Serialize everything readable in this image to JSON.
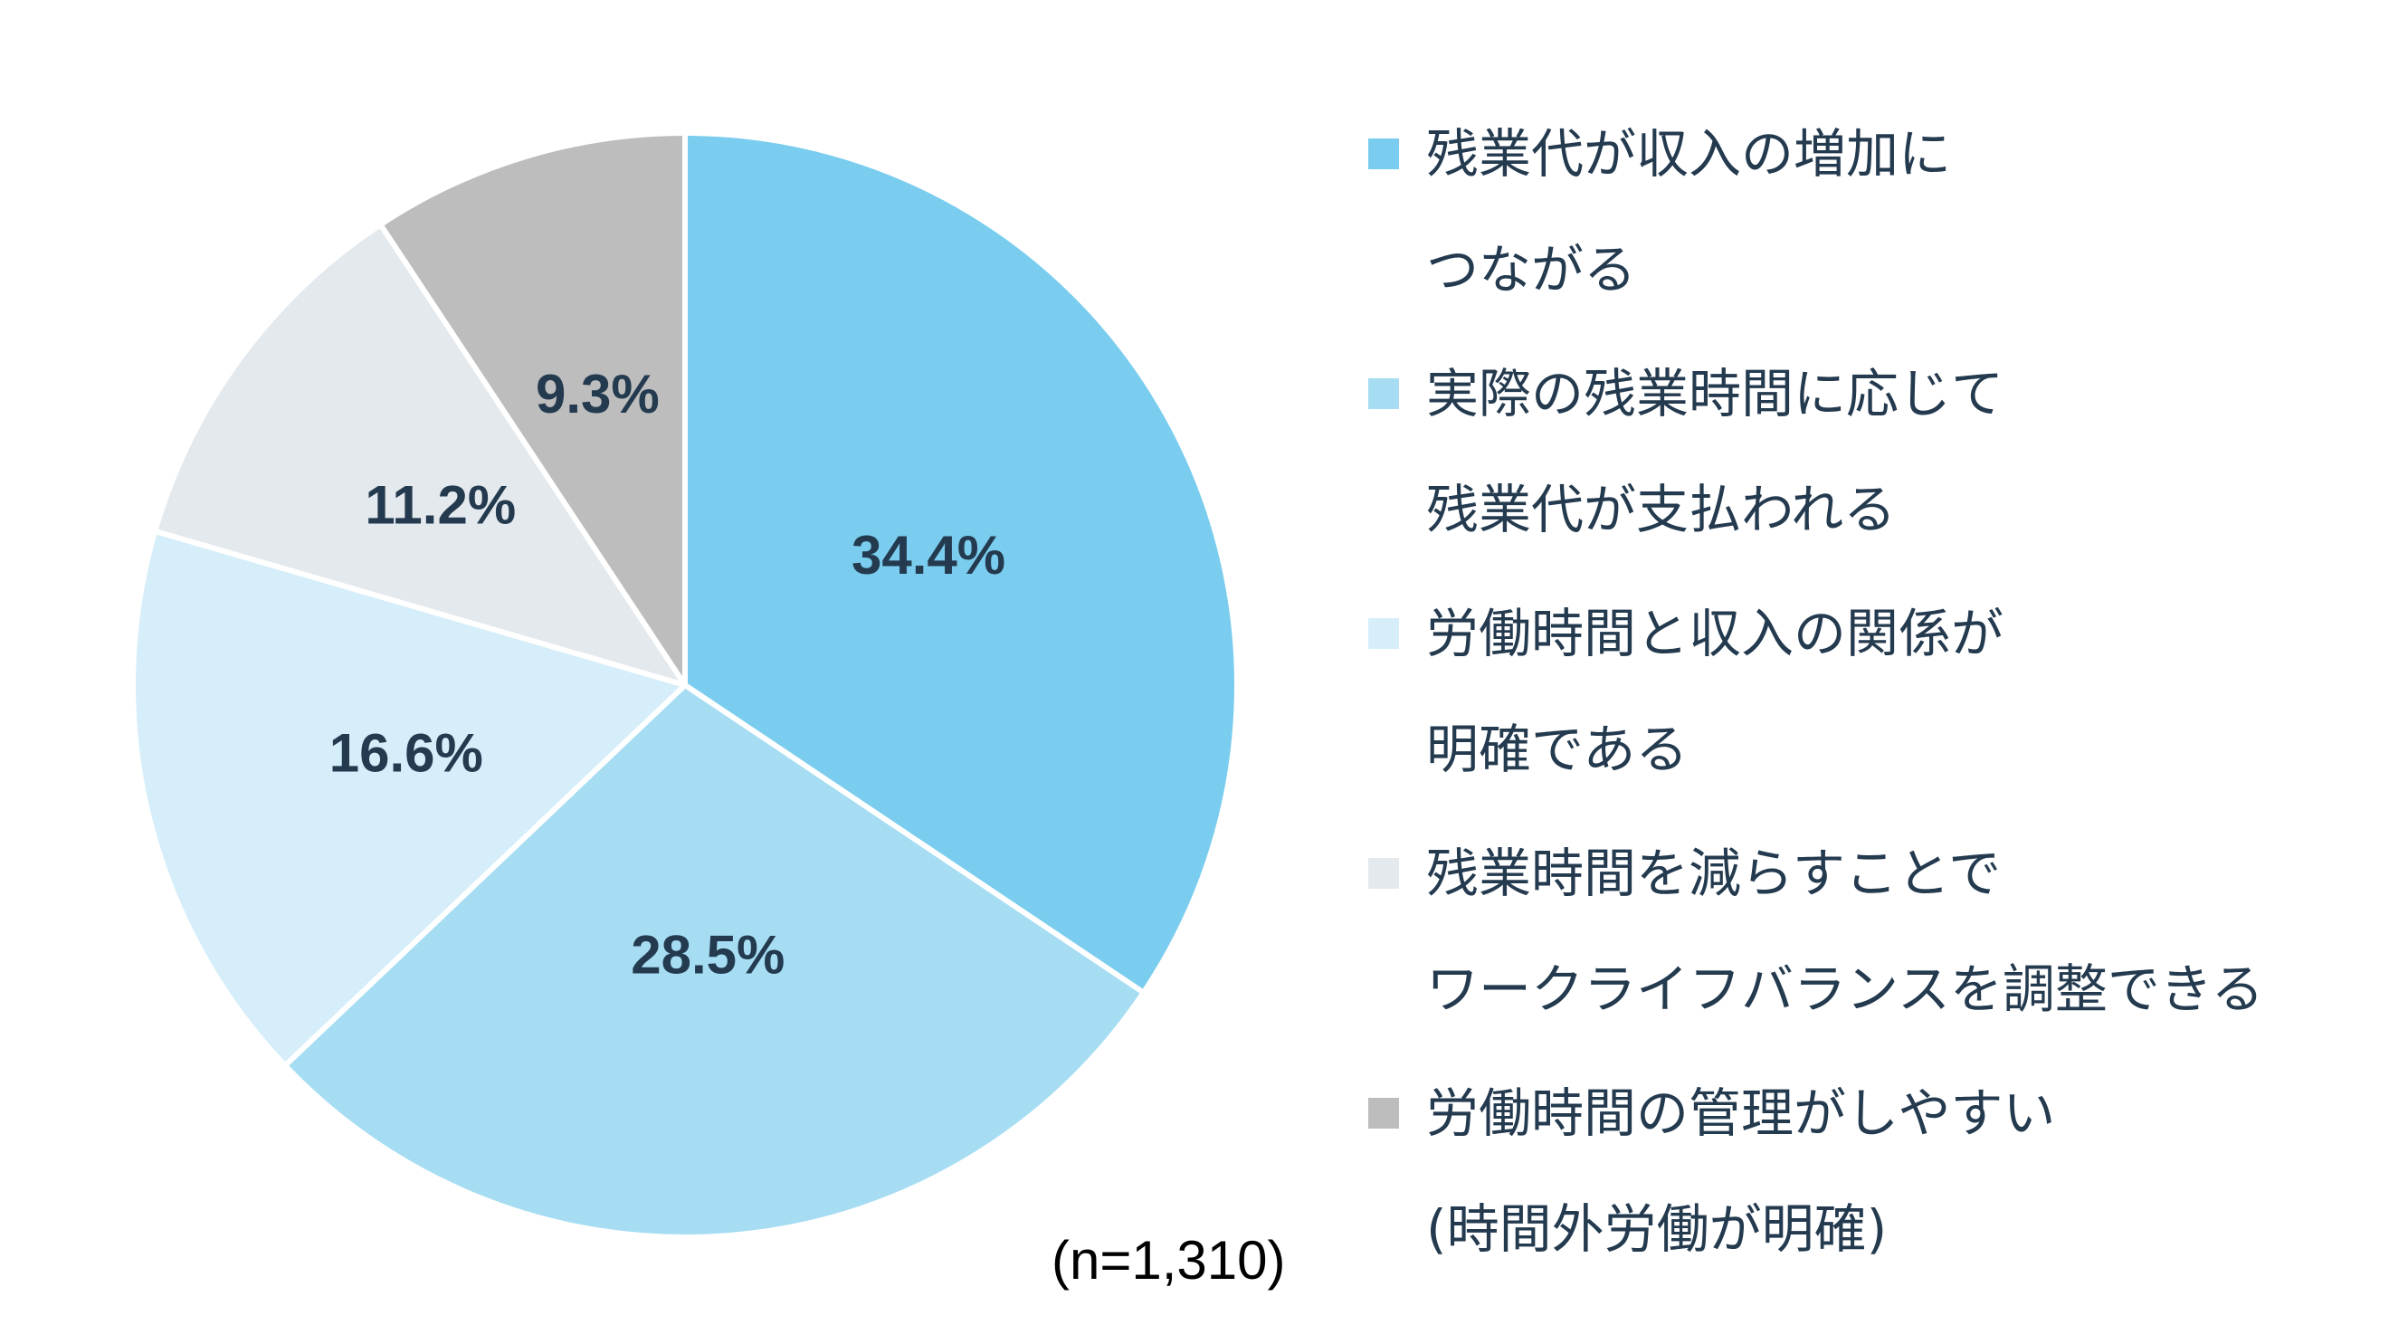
{
  "chart_data": {
    "type": "pie",
    "note": "(n=1,310)",
    "slices": [
      {
        "label_lines": [
          "残業代が収入の増加に",
          "つながる"
        ],
        "value": 34.4,
        "display": "34.4%",
        "color": "#7acdee"
      },
      {
        "label_lines": [
          "実際の残業時間に応じて",
          "残業代が支払われる"
        ],
        "value": 28.5,
        "display": "28.5%",
        "color": "#a6ddf3"
      },
      {
        "label_lines": [
          "労働時間と収入の関係が",
          "明確である"
        ],
        "value": 16.6,
        "display": "16.6%",
        "color": "#d5eef9"
      },
      {
        "label_lines": [
          "残業時間を減らすことで",
          "ワークライフバランスを調整できる"
        ],
        "value": 11.2,
        "display": "11.2%",
        "color": "#e4e9ed"
      },
      {
        "label_lines": [
          "労働時間の管理がしやすい",
          "(時間外労働が明確)"
        ],
        "value": 9.3,
        "display": "9.3%",
        "color": "#bdbdbd"
      }
    ]
  }
}
